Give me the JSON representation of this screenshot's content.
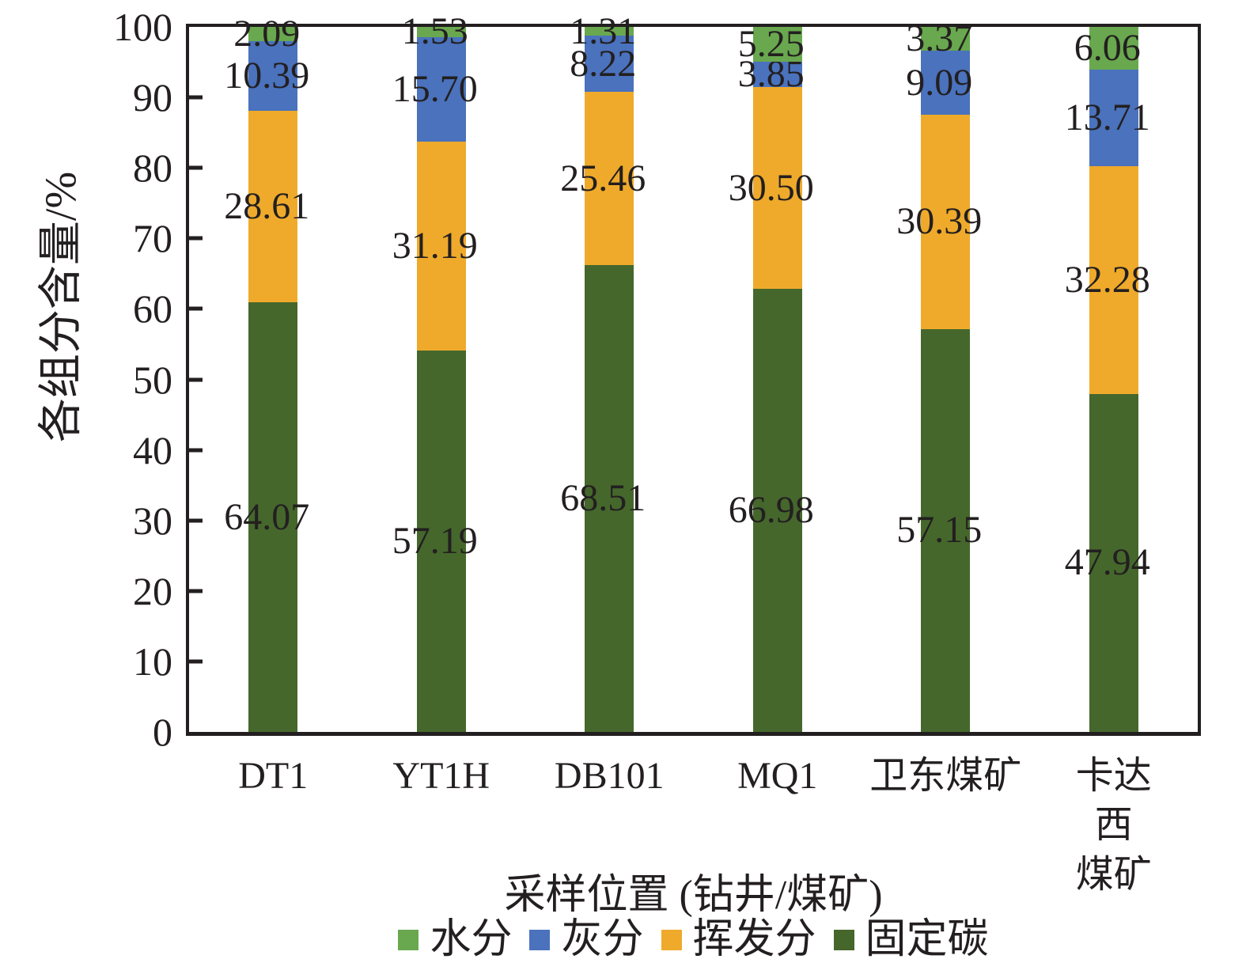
{
  "chart_data": {
    "type": "bar",
    "stacked": true,
    "percent_normalized": true,
    "title": "",
    "xlabel": "采样位置 (钻井/煤矿)",
    "ylabel": "各组分含量/%",
    "ylim": [
      0,
      100
    ],
    "yticks": [
      0,
      10,
      20,
      30,
      40,
      50,
      60,
      70,
      80,
      90,
      100
    ],
    "grid": false,
    "axis_color": "#231f20",
    "categories": [
      "DT1",
      "YT1H",
      "DB101",
      "MQ1",
      "卫东煤矿",
      "卡达西\n煤矿"
    ],
    "series": [
      {
        "name": "水分",
        "color": "#69a84e",
        "values": [
          2.09,
          1.53,
          1.31,
          5.25,
          3.37,
          6.06
        ]
      },
      {
        "name": "灰分",
        "color": "#4a72bd",
        "values": [
          10.39,
          15.7,
          8.22,
          3.85,
          9.09,
          13.71
        ]
      },
      {
        "name": "挥发分",
        "color": "#efaa2b",
        "values": [
          28.61,
          31.19,
          25.46,
          30.5,
          30.39,
          32.28
        ]
      },
      {
        "name": "固定碳",
        "color": "#45672c",
        "values": [
          64.07,
          57.19,
          68.51,
          66.98,
          57.15,
          47.94
        ]
      }
    ],
    "stack_order_bottom_to_top": [
      "固定碳",
      "挥发分",
      "灰分",
      "水分"
    ],
    "legend": {
      "position": "bottom",
      "items": [
        "水分",
        "灰分",
        "挥发分",
        "固定碳"
      ]
    },
    "value_label_decimals": 2
  }
}
